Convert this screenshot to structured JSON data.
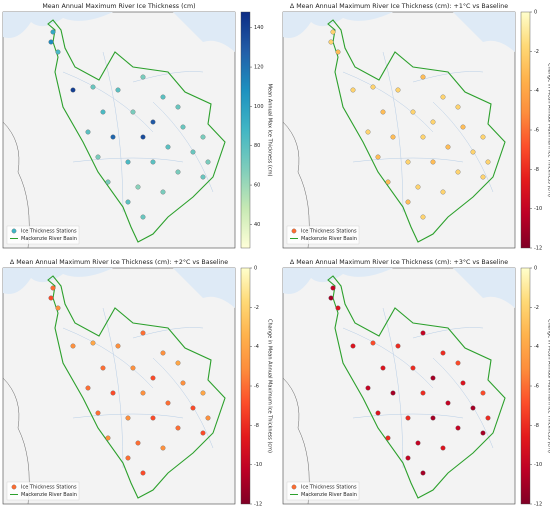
{
  "panels": [
    {
      "title": "Mean Annual Maximum River Ice Thickness (cm)",
      "colorbar_label": "Mean Annual Max Ice Thickness (cm)",
      "clim": [
        28,
        148
      ],
      "ticks": [
        40,
        60,
        80,
        100,
        120,
        140
      ],
      "colormap": [
        "#ffffd9",
        "#c7e9b4",
        "#7fcdbb",
        "#41b6c4",
        "#1d91c0",
        "#225ea8",
        "#0c2c84"
      ],
      "legend": [
        "Ice Thickness Stations",
        "Mackenzie River Basin"
      ],
      "stations": [
        95,
        110,
        85,
        140,
        75,
        80,
        70,
        80,
        75,
        85,
        70,
        130,
        75,
        70,
        80,
        125,
        135,
        80,
        75,
        70,
        70,
        85,
        80,
        70,
        75,
        70,
        65,
        70,
        80,
        75
      ]
    },
    {
      "title": "Δ Mean Annual Maximum River Ice Thickness (cm): +1°C vs Baseline",
      "colorbar_label": "Change in Mean Annual Maximum Ice Thickness (cm)",
      "clim": [
        -12,
        0
      ],
      "ticks": [
        -12,
        -10,
        -8,
        -6,
        -4,
        -2,
        0
      ],
      "colormap": [
        "#800026",
        "#bd0026",
        "#e31a1c",
        "#fc4e2a",
        "#fd8d3c",
        "#feb24c",
        "#fed976",
        "#ffffcc"
      ],
      "legend": [
        "Ice Thickness Stations",
        "Mackenzie River Basin"
      ],
      "stations": [
        -2,
        -2,
        -3,
        -2,
        -2,
        -2,
        -3,
        -2,
        -2,
        -3,
        -2,
        -2,
        -3,
        -2,
        -2,
        -3,
        -2,
        -3,
        -2,
        -2,
        -3,
        -2,
        -3,
        -2,
        -2,
        -3,
        -2,
        -2,
        -3,
        -2
      ]
    },
    {
      "title": "Δ Mean Annual Maximum River Ice Thickness (cm): +2°C vs Baseline",
      "colorbar_label": "Change in Mean Annual Maximum Ice Thickness (cm)",
      "clim": [
        -12,
        0
      ],
      "ticks": [
        -12,
        -10,
        -8,
        -6,
        -4,
        -2,
        0
      ],
      "colormap": [
        "#800026",
        "#bd0026",
        "#e31a1c",
        "#fc4e2a",
        "#fd8d3c",
        "#feb24c",
        "#fed976",
        "#ffffcc"
      ],
      "legend": [
        "Ice Thickness Stations",
        "Mackenzie River Basin"
      ],
      "stations": [
        -6,
        -7,
        -5,
        -5,
        -4,
        -5,
        -6,
        -5,
        -4,
        -6,
        -5,
        -7,
        -5,
        -4,
        -6,
        -7,
        -5,
        -6,
        -7,
        -5,
        -6,
        -5,
        -7,
        -6,
        -7,
        -5,
        -6,
        -5,
        -6,
        -7
      ]
    },
    {
      "title": "Δ Mean Annual Maximum River Ice Thickness (cm): +3°C vs Baseline",
      "colorbar_label": "Change in Mean Annual Maximum Ice Thickness (cm)",
      "clim": [
        -12,
        0
      ],
      "ticks": [
        -12,
        -10,
        -8,
        -6,
        -4,
        -2,
        0
      ],
      "colormap": [
        "#800026",
        "#bd0026",
        "#e31a1c",
        "#fc4e2a",
        "#fd8d3c",
        "#feb24c",
        "#fed976",
        "#ffffcc"
      ],
      "legend": [
        "Ice Thickness Stations",
        "Mackenzie River Basin"
      ],
      "stations": [
        -10,
        -11,
        -9,
        -9,
        -7,
        -8,
        -10,
        -8,
        -7,
        -9,
        -8,
        -11,
        -9,
        -7,
        -10,
        -11,
        -8,
        -10,
        -11,
        -8,
        -9,
        -8,
        -11,
        -10,
        -11,
        -8,
        -10,
        -9,
        -10,
        -11
      ]
    }
  ]
}
